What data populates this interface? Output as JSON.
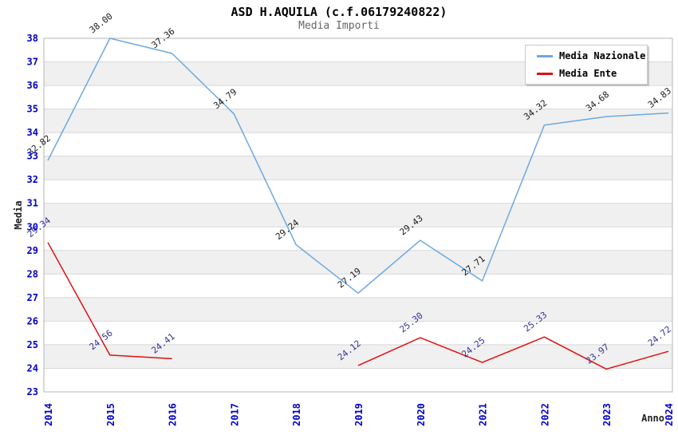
{
  "title": "ASD H.AQUILA (c.f.06179240822)",
  "subtitle": "Media Importi",
  "legend": {
    "items": [
      {
        "label": "Media Nazionale",
        "color": "#6CA9DF"
      },
      {
        "label": "Media Ente",
        "color": "#E01010"
      }
    ]
  },
  "axes": {
    "x_title": "Anno",
    "y_title": "Media"
  },
  "colors": {
    "tick_label": "#0000CC",
    "grid_band": "#F0F0F0",
    "grid_line": "#D8D8D8",
    "plot_border": "#B4B4B4",
    "nazionale_line": "#6CA9DF",
    "ente_line": "#E01010",
    "nazionale_label": "#1A1A1A",
    "ente_label": "#333399"
  },
  "chart_data": {
    "type": "line",
    "title": "ASD H.AQUILA (c.f.06179240822)",
    "subtitle": "Media Importi",
    "xlabel": "Anno",
    "ylabel": "Media",
    "x": [
      2014,
      2015,
      2016,
      2017,
      2018,
      2019,
      2020,
      2021,
      2022,
      2023,
      2024
    ],
    "ylim": [
      23,
      38
    ],
    "ytick_step": 1,
    "grid": true,
    "legend_position": "top-right",
    "series": [
      {
        "name": "Media Nazionale",
        "color": "#6CA9DF",
        "values": [
          32.82,
          38.0,
          37.36,
          34.79,
          29.24,
          27.19,
          29.43,
          27.71,
          34.32,
          34.68,
          34.83
        ]
      },
      {
        "name": "Media Ente",
        "color": "#E01010",
        "values": [
          29.34,
          24.56,
          24.41,
          null,
          null,
          24.12,
          25.3,
          24.25,
          25.33,
          23.97,
          24.72
        ]
      }
    ]
  }
}
